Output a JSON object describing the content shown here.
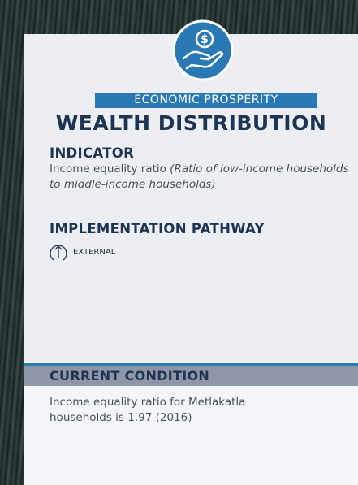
{
  "header": {
    "category": "ECONOMIC PROSPERITY",
    "title": "WEALTH DISTRIBUTION"
  },
  "indicator": {
    "heading": "INDICATOR",
    "text": "Income equality ratio",
    "note": "(Ratio of low-income households to middle-income households)"
  },
  "pathway": {
    "heading": "IMPLEMENTATION PATHWAY",
    "label": "EXTERNAL"
  },
  "condition": {
    "heading": "CURRENT CONDITION",
    "text": "Income equality ratio for Metlakatla households is 1.97 (2016)"
  }
}
